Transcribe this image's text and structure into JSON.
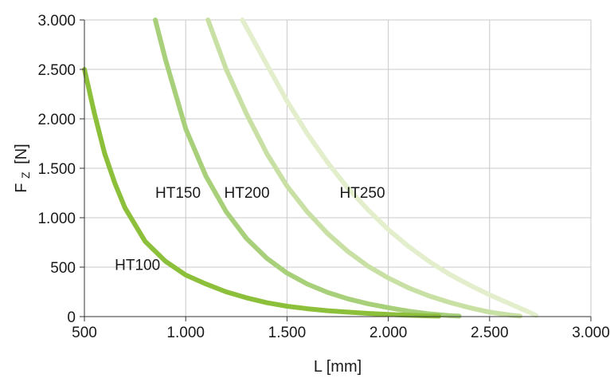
{
  "chart_data": {
    "type": "line",
    "xlabel": "L [mm]",
    "ylabel": {
      "main": "F",
      "sub": "Z",
      "unit": "[N]"
    },
    "xlim": [
      500,
      3000
    ],
    "ylim": [
      0,
      3000
    ],
    "x_ticks": [
      {
        "value": 500,
        "label": "500"
      },
      {
        "value": 1000,
        "label": "1.000"
      },
      {
        "value": 1500,
        "label": "1.500"
      },
      {
        "value": 2000,
        "label": "2.000"
      },
      {
        "value": 2500,
        "label": "2.500"
      },
      {
        "value": 3000,
        "label": "3.000"
      }
    ],
    "y_ticks": [
      {
        "value": 0,
        "label": "0"
      },
      {
        "value": 500,
        "label": "500"
      },
      {
        "value": 1000,
        "label": "1.000"
      },
      {
        "value": 1500,
        "label": "1.500"
      },
      {
        "value": 2000,
        "label": "2.000"
      },
      {
        "value": 2500,
        "label": "2.500"
      },
      {
        "value": 3000,
        "label": "3.000"
      }
    ],
    "grid": true,
    "series": [
      {
        "name": "HT100",
        "color": "#8cbf3a",
        "label_at": [
          650,
          470
        ],
        "points": [
          [
            500,
            2500
          ],
          [
            550,
            2050
          ],
          [
            600,
            1650
          ],
          [
            650,
            1350
          ],
          [
            700,
            1100
          ],
          [
            800,
            760
          ],
          [
            900,
            560
          ],
          [
            1000,
            420
          ],
          [
            1100,
            330
          ],
          [
            1200,
            250
          ],
          [
            1300,
            190
          ],
          [
            1400,
            140
          ],
          [
            1500,
            105
          ],
          [
            1600,
            80
          ],
          [
            1700,
            60
          ],
          [
            1800,
            45
          ],
          [
            1900,
            32
          ],
          [
            2000,
            22
          ],
          [
            2100,
            14
          ],
          [
            2200,
            7
          ],
          [
            2250,
            5
          ]
        ]
      },
      {
        "name": "HT150",
        "color": "#a8d07a",
        "label_at": [
          850,
          1200
        ],
        "points": [
          [
            850,
            3000
          ],
          [
            900,
            2600
          ],
          [
            950,
            2250
          ],
          [
            1000,
            1900
          ],
          [
            1100,
            1420
          ],
          [
            1200,
            1060
          ],
          [
            1300,
            790
          ],
          [
            1400,
            590
          ],
          [
            1500,
            440
          ],
          [
            1600,
            330
          ],
          [
            1700,
            245
          ],
          [
            1800,
            180
          ],
          [
            1900,
            130
          ],
          [
            2000,
            90
          ],
          [
            2100,
            55
          ],
          [
            2200,
            28
          ],
          [
            2300,
            10
          ],
          [
            2350,
            5
          ]
        ]
      },
      {
        "name": "HT200",
        "color": "#c9e0a5",
        "label_at": [
          1190,
          1200
        ],
        "points": [
          [
            1110,
            3000
          ],
          [
            1200,
            2500
          ],
          [
            1300,
            2050
          ],
          [
            1400,
            1650
          ],
          [
            1500,
            1320
          ],
          [
            1600,
            1060
          ],
          [
            1700,
            840
          ],
          [
            1800,
            660
          ],
          [
            1900,
            510
          ],
          [
            2000,
            390
          ],
          [
            2100,
            290
          ],
          [
            2200,
            210
          ],
          [
            2300,
            145
          ],
          [
            2400,
            90
          ],
          [
            2500,
            45
          ],
          [
            2600,
            15
          ],
          [
            2650,
            5
          ]
        ]
      },
      {
        "name": "HT250",
        "color": "#e3efcc",
        "label_at": [
          1760,
          1200
        ],
        "points": [
          [
            1280,
            3000
          ],
          [
            1400,
            2550
          ],
          [
            1500,
            2180
          ],
          [
            1600,
            1850
          ],
          [
            1700,
            1560
          ],
          [
            1800,
            1300
          ],
          [
            1900,
            1080
          ],
          [
            2000,
            880
          ],
          [
            2100,
            710
          ],
          [
            2200,
            560
          ],
          [
            2300,
            430
          ],
          [
            2400,
            320
          ],
          [
            2500,
            220
          ],
          [
            2600,
            130
          ],
          [
            2700,
            40
          ],
          [
            2730,
            10
          ]
        ]
      }
    ]
  }
}
